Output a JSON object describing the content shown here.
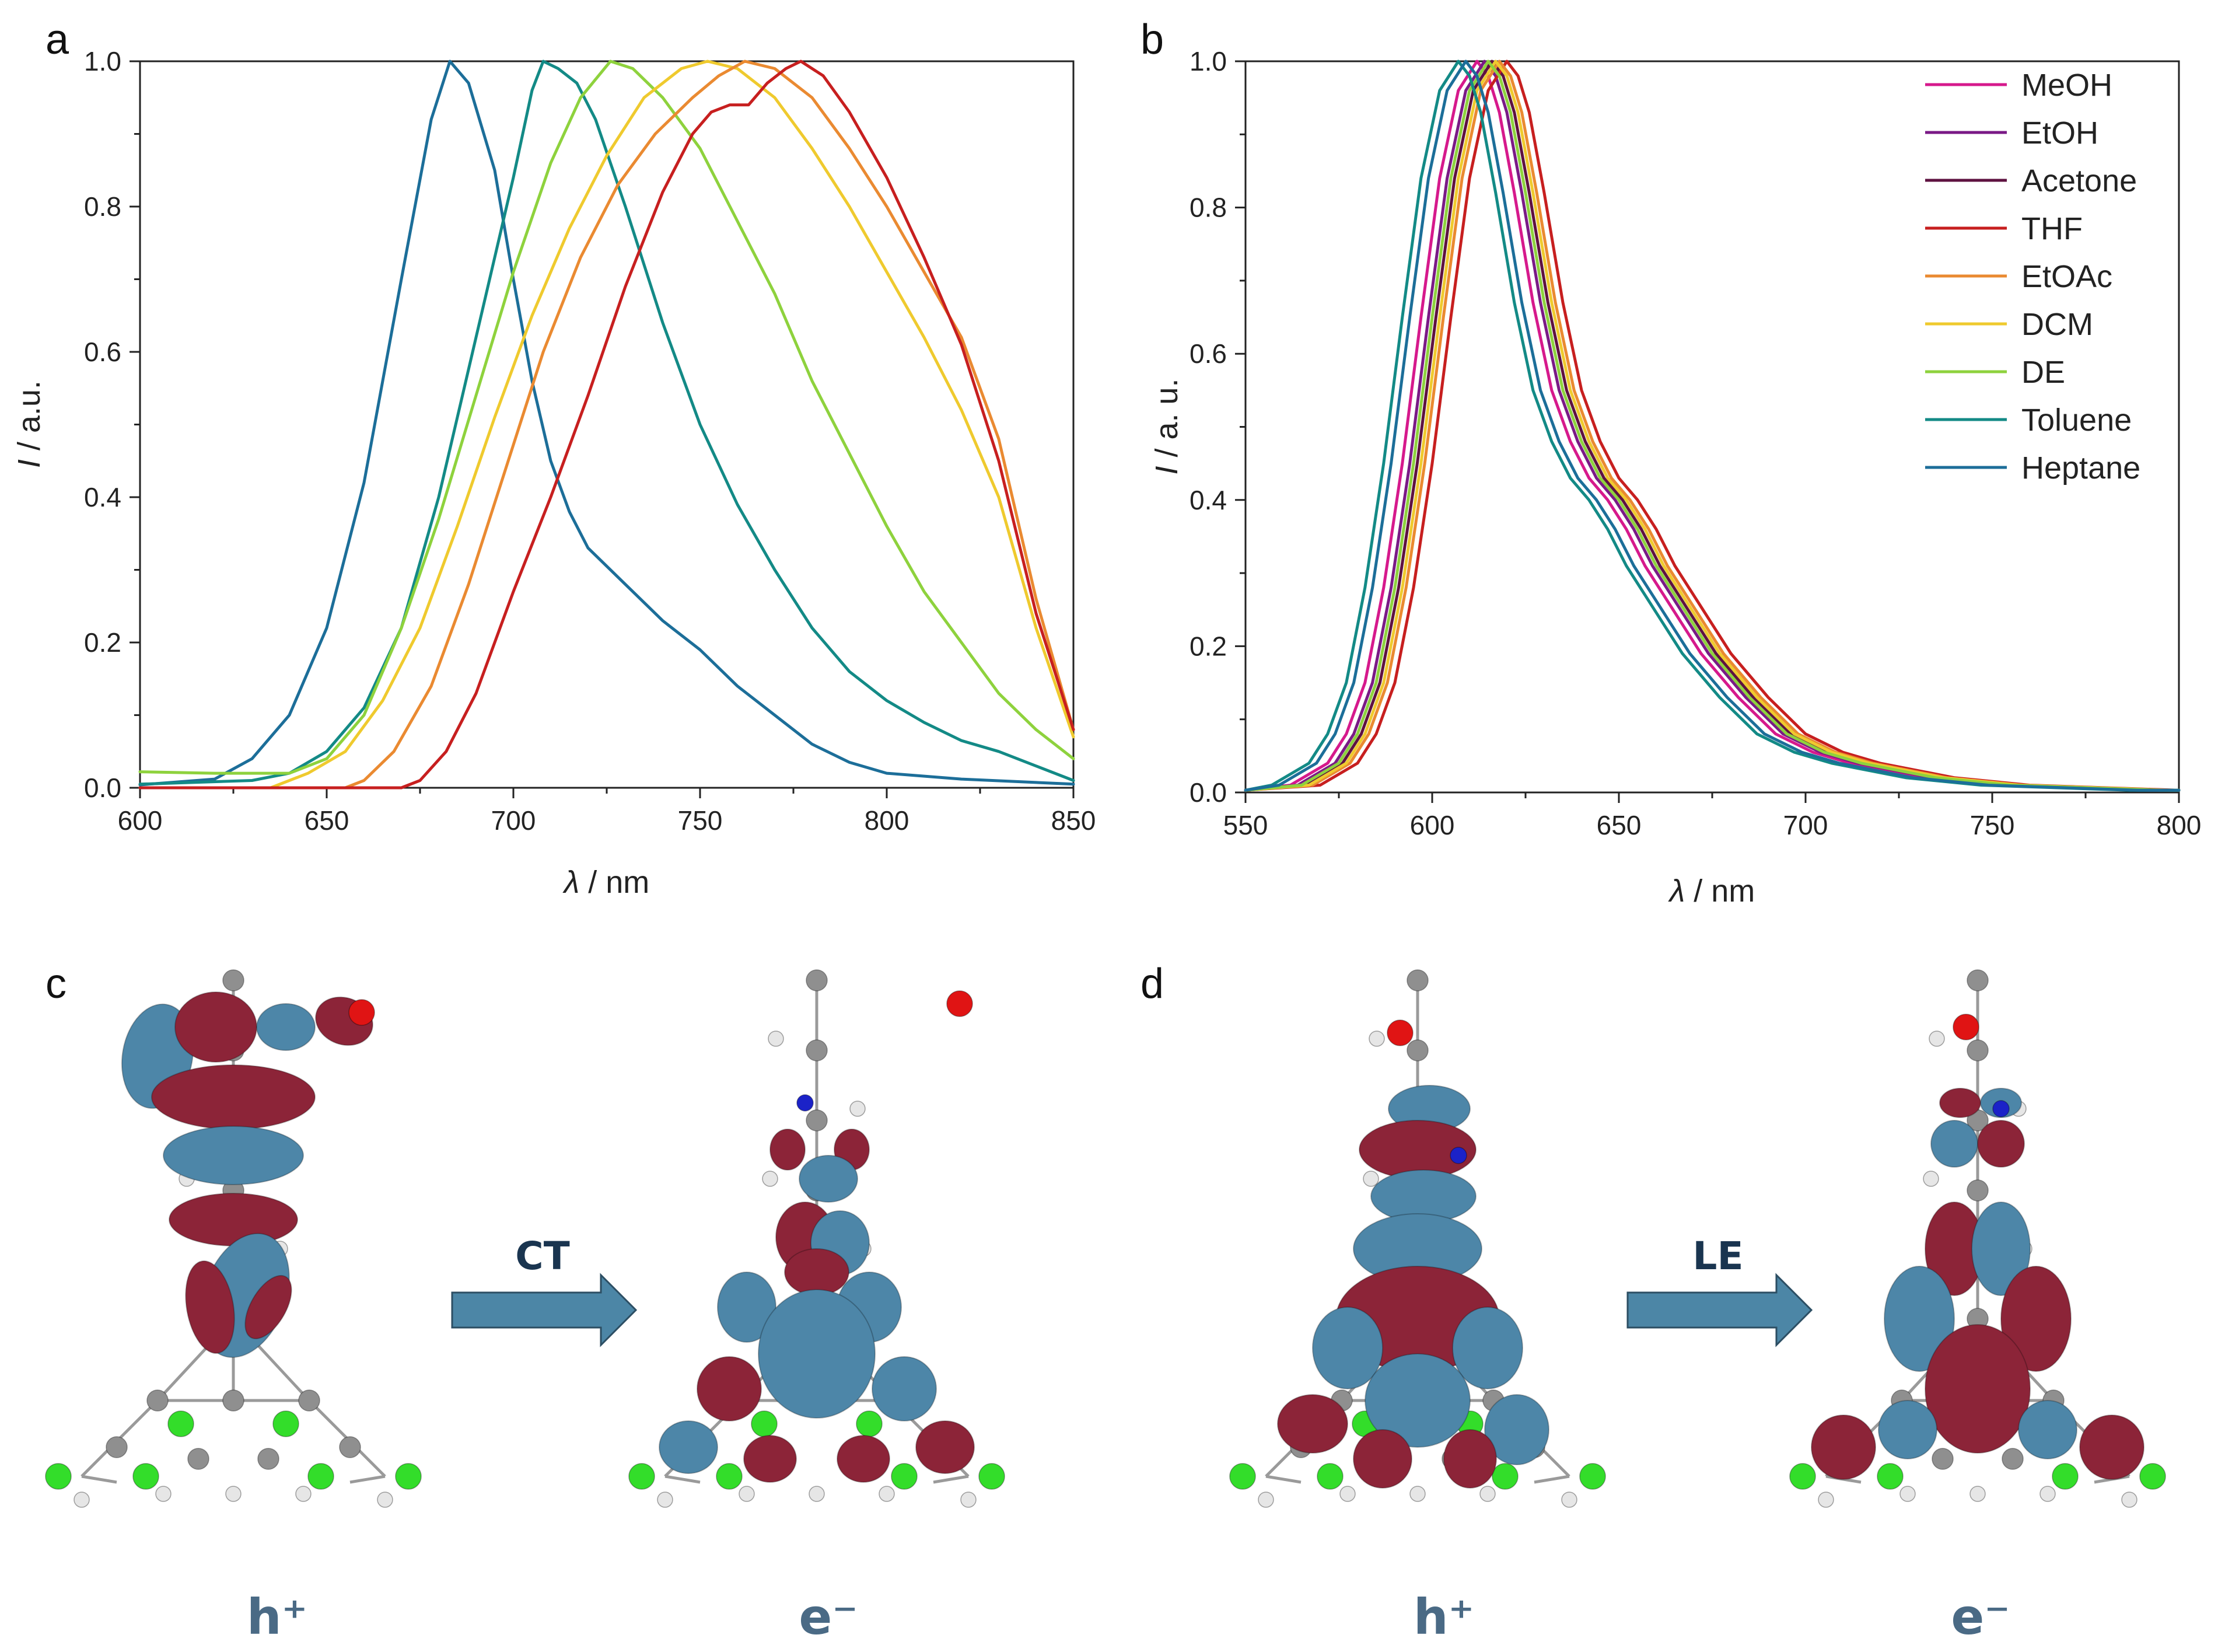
{
  "panels": {
    "a": "a",
    "b": "b",
    "c": "c",
    "d": "d"
  },
  "chart_data": [
    {
      "type": "line",
      "panel": "a",
      "xlabel_symbol": "λ",
      "xlabel_unit": " / nm",
      "ylabel_symbol": "I",
      "ylabel_unit": " / a.u.",
      "xlim": [
        600,
        850
      ],
      "ylim": [
        0,
        1.0
      ],
      "xticks": [
        600,
        650,
        700,
        750,
        800,
        850
      ],
      "yticks": [
        "0.0",
        "0.2",
        "0.4",
        "0.6",
        "0.8",
        "1.0"
      ],
      "series": [
        {
          "name": "Heptane",
          "color": "#1c6e99",
          "points": [
            [
              600,
              0.004
            ],
            [
              620,
              0.012
            ],
            [
              630,
              0.04
            ],
            [
              640,
              0.1
            ],
            [
              650,
              0.22
            ],
            [
              660,
              0.42
            ],
            [
              670,
              0.7
            ],
            [
              678,
              0.92
            ],
            [
              683,
              1.0
            ],
            [
              688,
              0.97
            ],
            [
              695,
              0.85
            ],
            [
              700,
              0.7
            ],
            [
              705,
              0.56
            ],
            [
              710,
              0.45
            ],
            [
              715,
              0.38
            ],
            [
              720,
              0.33
            ],
            [
              730,
              0.28
            ],
            [
              740,
              0.23
            ],
            [
              750,
              0.19
            ],
            [
              760,
              0.14
            ],
            [
              770,
              0.1
            ],
            [
              780,
              0.06
            ],
            [
              790,
              0.035
            ],
            [
              800,
              0.02
            ],
            [
              820,
              0.012
            ],
            [
              850,
              0.005
            ]
          ]
        },
        {
          "name": "Toluene",
          "color": "#138a86",
          "points": [
            [
              600,
              0.005
            ],
            [
              630,
              0.01
            ],
            [
              640,
              0.02
            ],
            [
              650,
              0.05
            ],
            [
              660,
              0.11
            ],
            [
              670,
              0.22
            ],
            [
              680,
              0.4
            ],
            [
              690,
              0.62
            ],
            [
              700,
              0.84
            ],
            [
              705,
              0.96
            ],
            [
              708,
              1.0
            ],
            [
              712,
              0.99
            ],
            [
              717,
              0.97
            ],
            [
              722,
              0.92
            ],
            [
              730,
              0.8
            ],
            [
              740,
              0.64
            ],
            [
              750,
              0.5
            ],
            [
              760,
              0.39
            ],
            [
              770,
              0.3
            ],
            [
              780,
              0.22
            ],
            [
              790,
              0.16
            ],
            [
              800,
              0.12
            ],
            [
              810,
              0.09
            ],
            [
              820,
              0.065
            ],
            [
              830,
              0.05
            ],
            [
              840,
              0.03
            ],
            [
              850,
              0.01
            ]
          ]
        },
        {
          "name": "DE",
          "color": "#8ed23d",
          "points": [
            [
              600,
              0.022
            ],
            [
              620,
              0.02
            ],
            [
              640,
              0.02
            ],
            [
              650,
              0.04
            ],
            [
              660,
              0.1
            ],
            [
              670,
              0.22
            ],
            [
              680,
              0.37
            ],
            [
              690,
              0.54
            ],
            [
              700,
              0.71
            ],
            [
              710,
              0.86
            ],
            [
              718,
              0.95
            ],
            [
              726,
              1.0
            ],
            [
              732,
              0.99
            ],
            [
              740,
              0.95
            ],
            [
              750,
              0.88
            ],
            [
              760,
              0.78
            ],
            [
              770,
              0.68
            ],
            [
              780,
              0.56
            ],
            [
              790,
              0.46
            ],
            [
              800,
              0.36
            ],
            [
              810,
              0.27
            ],
            [
              820,
              0.2
            ],
            [
              830,
              0.13
            ],
            [
              840,
              0.08
            ],
            [
              850,
              0.04
            ]
          ]
        },
        {
          "name": "DCM",
          "color": "#efca2e",
          "points": [
            [
              600,
              0.0
            ],
            [
              635,
              0.0
            ],
            [
              645,
              0.02
            ],
            [
              655,
              0.05
            ],
            [
              665,
              0.12
            ],
            [
              675,
              0.22
            ],
            [
              685,
              0.36
            ],
            [
              695,
              0.51
            ],
            [
              705,
              0.65
            ],
            [
              715,
              0.77
            ],
            [
              725,
              0.87
            ],
            [
              735,
              0.95
            ],
            [
              745,
              0.99
            ],
            [
              752,
              1.0
            ],
            [
              760,
              0.99
            ],
            [
              770,
              0.95
            ],
            [
              780,
              0.88
            ],
            [
              790,
              0.8
            ],
            [
              800,
              0.71
            ],
            [
              810,
              0.62
            ],
            [
              820,
              0.52
            ],
            [
              830,
              0.4
            ],
            [
              840,
              0.22
            ],
            [
              850,
              0.07
            ]
          ]
        },
        {
          "name": "EtOAc",
          "color": "#ea8a31",
          "points": [
            [
              600,
              0.0
            ],
            [
              655,
              0.0
            ],
            [
              660,
              0.01
            ],
            [
              668,
              0.05
            ],
            [
              678,
              0.14
            ],
            [
              688,
              0.28
            ],
            [
              698,
              0.44
            ],
            [
              708,
              0.6
            ],
            [
              718,
              0.73
            ],
            [
              728,
              0.83
            ],
            [
              738,
              0.9
            ],
            [
              748,
              0.95
            ],
            [
              755,
              0.98
            ],
            [
              762,
              1.0
            ],
            [
              770,
              0.99
            ],
            [
              780,
              0.95
            ],
            [
              790,
              0.88
            ],
            [
              800,
              0.8
            ],
            [
              810,
              0.71
            ],
            [
              820,
              0.62
            ],
            [
              830,
              0.48
            ],
            [
              840,
              0.26
            ],
            [
              850,
              0.08
            ]
          ]
        },
        {
          "name": "THF",
          "color": "#c71f1f",
          "points": [
            [
              600,
              0.0
            ],
            [
              670,
              0.0
            ],
            [
              675,
              0.01
            ],
            [
              682,
              0.05
            ],
            [
              690,
              0.13
            ],
            [
              700,
              0.27
            ],
            [
              710,
              0.4
            ],
            [
              720,
              0.54
            ],
            [
              730,
              0.69
            ],
            [
              740,
              0.82
            ],
            [
              748,
              0.9
            ],
            [
              753,
              0.93
            ],
            [
              758,
              0.94
            ],
            [
              763,
              0.94
            ],
            [
              768,
              0.97
            ],
            [
              773,
              0.99
            ],
            [
              777,
              1.0
            ],
            [
              783,
              0.98
            ],
            [
              790,
              0.93
            ],
            [
              800,
              0.84
            ],
            [
              810,
              0.73
            ],
            [
              820,
              0.61
            ],
            [
              830,
              0.45
            ],
            [
              840,
              0.24
            ],
            [
              850,
              0.08
            ]
          ]
        }
      ]
    },
    {
      "type": "line",
      "panel": "b",
      "xlabel_symbol": "λ",
      "xlabel_unit": " / nm",
      "ylabel_symbol": "I",
      "ylabel_unit": " / a. u.",
      "xlim": [
        550,
        800
      ],
      "ylim": [
        0,
        1.0
      ],
      "xticks": [
        550,
        600,
        650,
        700,
        750,
        800
      ],
      "yticks": [
        "0.0",
        "0.2",
        "0.4",
        "0.6",
        "0.8",
        "1.0"
      ],
      "legend_position": "top-right",
      "legend": [
        {
          "name": "MeOH",
          "color": "#d6198c",
          "peak": 612
        },
        {
          "name": "EtOH",
          "color": "#7a1a86",
          "peak": 614
        },
        {
          "name": "Acetone",
          "color": "#5e1240",
          "peak": 616
        },
        {
          "name": "THF",
          "color": "#c71f1f",
          "peak": 620
        },
        {
          "name": "EtOAc",
          "color": "#ea8a31",
          "peak": 618
        },
        {
          "name": "DCM",
          "color": "#efca2e",
          "peak": 617
        },
        {
          "name": "DE",
          "color": "#8ed23d",
          "peak": 615
        },
        {
          "name": "Toluene",
          "color": "#138a86",
          "peak": 607
        },
        {
          "name": "Heptane",
          "color": "#1c6e99",
          "peak": 609
        }
      ],
      "base_profile": [
        [
          -70,
          0.003
        ],
        [
          -50,
          0.01
        ],
        [
          -40,
          0.04
        ],
        [
          -35,
          0.08
        ],
        [
          -30,
          0.15
        ],
        [
          -25,
          0.28
        ],
        [
          -20,
          0.45
        ],
        [
          -15,
          0.65
        ],
        [
          -10,
          0.84
        ],
        [
          -5,
          0.96
        ],
        [
          0,
          1.0
        ],
        [
          3,
          0.98
        ],
        [
          6,
          0.93
        ],
        [
          10,
          0.82
        ],
        [
          15,
          0.67
        ],
        [
          20,
          0.55
        ],
        [
          25,
          0.48
        ],
        [
          30,
          0.43
        ],
        [
          35,
          0.4
        ],
        [
          40,
          0.36
        ],
        [
          45,
          0.31
        ],
        [
          50,
          0.27
        ],
        [
          55,
          0.23
        ],
        [
          60,
          0.19
        ],
        [
          70,
          0.13
        ],
        [
          80,
          0.08
        ],
        [
          90,
          0.055
        ],
        [
          100,
          0.04
        ],
        [
          110,
          0.03
        ],
        [
          120,
          0.02
        ],
        [
          140,
          0.01
        ],
        [
          180,
          0.003
        ]
      ]
    }
  ],
  "orbitals": {
    "c": {
      "left_label": "h⁺",
      "arrow_label": "CT",
      "right_label": "e⁻"
    },
    "d": {
      "left_label": "h⁺",
      "arrow_label": "LE",
      "right_label": "e⁻"
    }
  },
  "colors": {
    "lobe_red": "#8c2438",
    "lobe_blue": "#4d86a8",
    "arrow": "#4c86a6",
    "carbon": "#8f8f8f",
    "hydrogen": "#e6e6e6",
    "chlorine": "#33dd2a",
    "oxygen": "#e01414",
    "nitrogen": "#1b22c8"
  }
}
